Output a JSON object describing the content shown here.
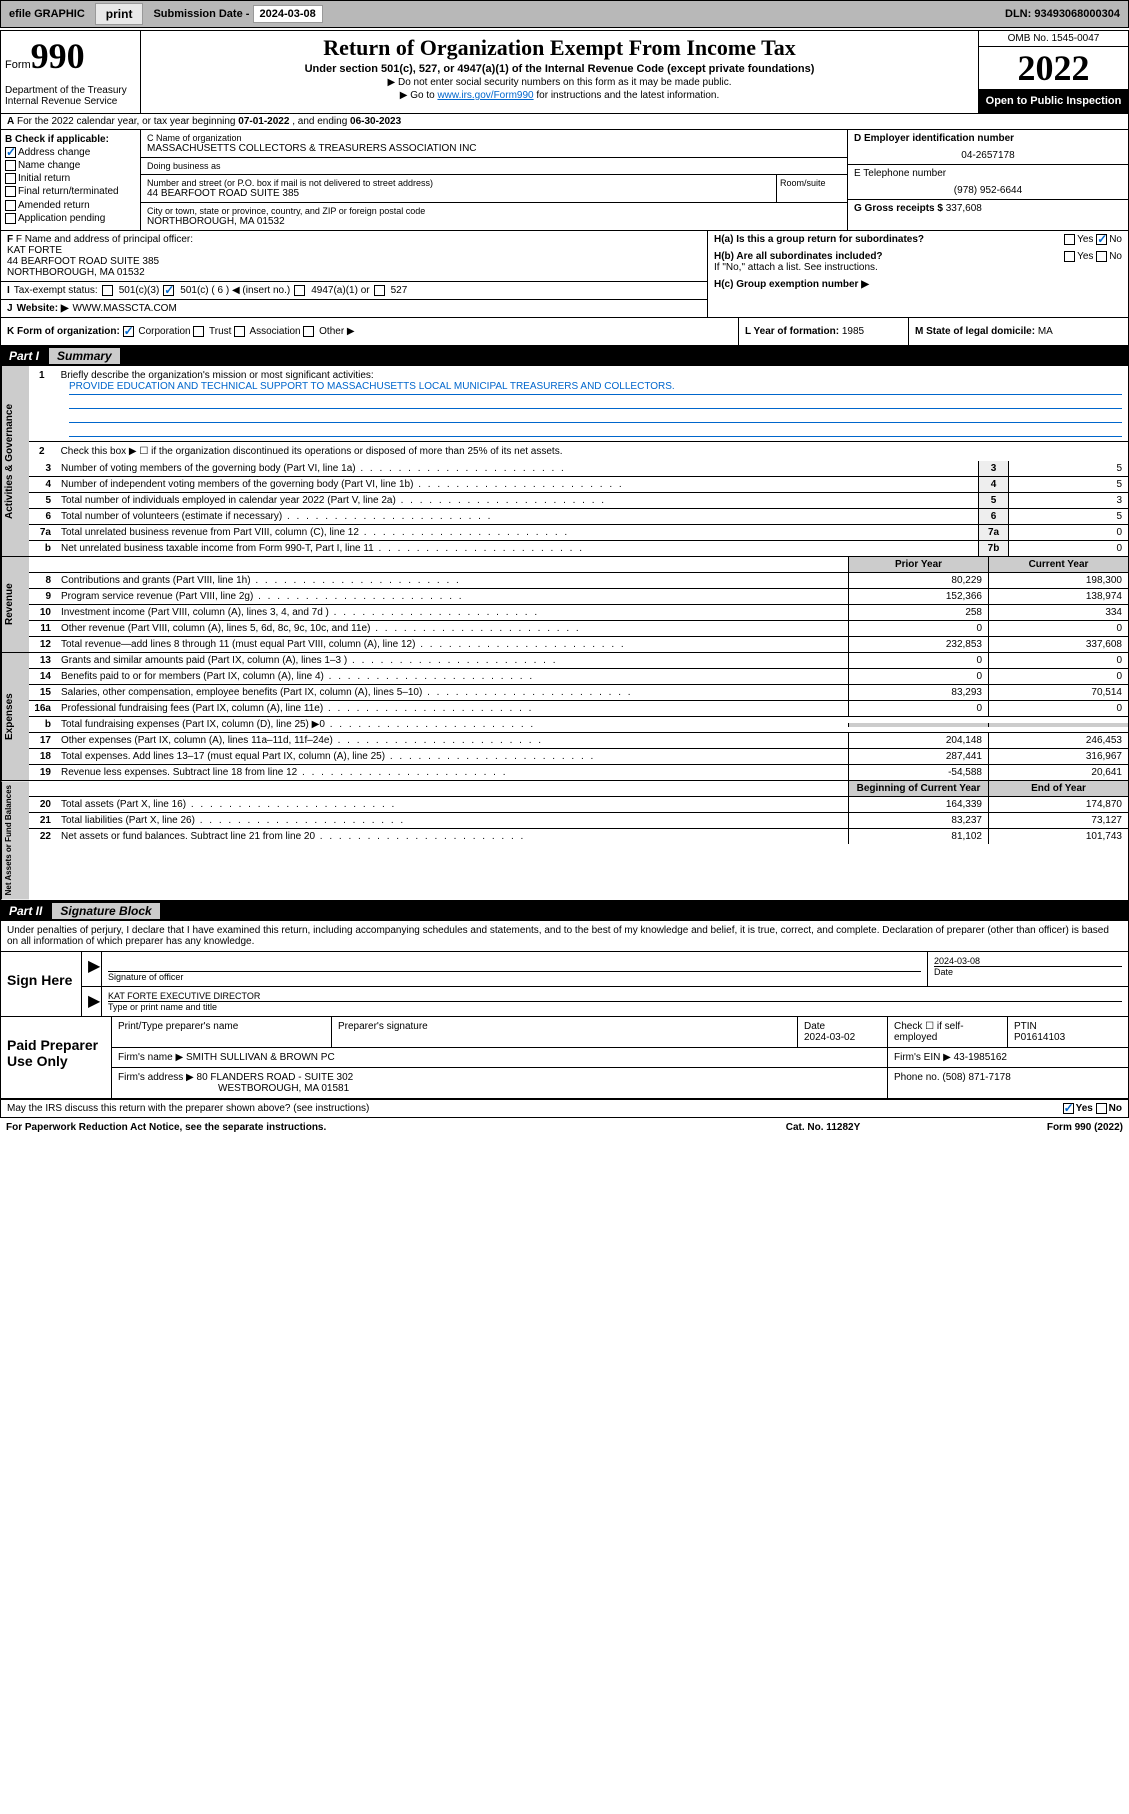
{
  "topbar": {
    "efile": "efile GRAPHIC",
    "print": "print",
    "subdate_label": "Submission Date - ",
    "subdate": "2024-03-08",
    "dln_label": "DLN: ",
    "dln": "93493068000304"
  },
  "header": {
    "form_label": "Form",
    "form_num": "990",
    "title": "Return of Organization Exempt From Income Tax",
    "subtitle": "Under section 501(c), 527, or 4947(a)(1) of the Internal Revenue Code (except private foundations)",
    "instr1": "▶ Do not enter social security numbers on this form as it may be made public.",
    "instr2_pre": "▶ Go to ",
    "instr2_link": "www.irs.gov/Form990",
    "instr2_post": " for instructions and the latest information.",
    "dept": "Department of the Treasury\nInternal Revenue Service",
    "omb": "OMB No. 1545-0047",
    "year": "2022",
    "open": "Open to Public Inspection"
  },
  "rowA": {
    "pre": "For the 2022 calendar year, or tax year beginning ",
    "begin": "07-01-2022",
    "mid": " , and ending ",
    "end": "06-30-2023"
  },
  "colB": {
    "label": "B Check if applicable:",
    "items": [
      "Address change",
      "Name change",
      "Initial return",
      "Final return/terminated",
      "Amended return",
      "Application pending"
    ],
    "checked": [
      true,
      false,
      false,
      false,
      false,
      false
    ]
  },
  "colC": {
    "name_label": "C Name of organization",
    "name": "MASSACHUSETTS COLLECTORS & TREASURERS ASSOCIATION INC",
    "dba_label": "Doing business as",
    "dba": "",
    "street_label": "Number and street (or P.O. box if mail is not delivered to street address)",
    "street": "44 BEARFOOT ROAD SUITE 385",
    "room_label": "Room/suite",
    "city_label": "City or town, state or province, country, and ZIP or foreign postal code",
    "city": "NORTHBOROUGH, MA  01532"
  },
  "colD": {
    "ein_label": "D Employer identification number",
    "ein": "04-2657178",
    "phone_label": "E Telephone number",
    "phone": "(978) 952-6644",
    "gross_label": "G Gross receipts $ ",
    "gross": "337,608"
  },
  "rowF": {
    "label": "F Name and address of principal officer:",
    "name": "KAT FORTE",
    "addr1": "44 BEARFOOT ROAD SUITE 385",
    "addr2": "NORTHBOROUGH, MA  01532"
  },
  "rowH": {
    "ha": "H(a)  Is this a group return for subordinates?",
    "hb": "H(b)  Are all subordinates included?",
    "hb_note": "If \"No,\" attach a list. See instructions.",
    "hc": "H(c)  Group exemption number ▶"
  },
  "rowI": {
    "label": "Tax-exempt status:",
    "opts": [
      "501(c)(3)",
      "501(c) ( 6 ) ◀ (insert no.)",
      "4947(a)(1) or",
      "527"
    ]
  },
  "rowJ": {
    "label": "Website: ▶",
    "value": "WWW.MASSCTA.COM"
  },
  "rowK": {
    "label": "K Form of organization:",
    "opts": [
      "Corporation",
      "Trust",
      "Association",
      "Other ▶"
    ],
    "year_label": "L Year of formation: ",
    "year": "1985",
    "state_label": "M State of legal domicile: ",
    "state": "MA"
  },
  "part1": {
    "label": "Part I",
    "title": "Summary"
  },
  "mission": {
    "num": "1",
    "label": "Briefly describe the organization's mission or most significant activities:",
    "text": "PROVIDE EDUCATION AND TECHNICAL SUPPORT TO MASSACHUSETTS LOCAL MUNICIPAL TREASURERS AND COLLECTORS."
  },
  "line2": {
    "num": "2",
    "text": "Check this box ▶ ☐  if the organization discontinued its operations or disposed of more than 25% of its net assets."
  },
  "gov_lines": [
    {
      "num": "3",
      "desc": "Number of voting members of the governing body (Part VI, line 1a)",
      "box": "3",
      "val": "5"
    },
    {
      "num": "4",
      "desc": "Number of independent voting members of the governing body (Part VI, line 1b)",
      "box": "4",
      "val": "5"
    },
    {
      "num": "5",
      "desc": "Total number of individuals employed in calendar year 2022 (Part V, line 2a)",
      "box": "5",
      "val": "3"
    },
    {
      "num": "6",
      "desc": "Total number of volunteers (estimate if necessary)",
      "box": "6",
      "val": "5"
    },
    {
      "num": "7a",
      "desc": "Total unrelated business revenue from Part VIII, column (C), line 12",
      "box": "7a",
      "val": "0"
    },
    {
      "num": "b",
      "desc": "Net unrelated business taxable income from Form 990-T, Part I, line 11",
      "box": "7b",
      "val": "0"
    }
  ],
  "py_cy_header": {
    "prior": "Prior Year",
    "current": "Current Year"
  },
  "revenue_lines": [
    {
      "num": "8",
      "desc": "Contributions and grants (Part VIII, line 1h)",
      "prior": "80,229",
      "current": "198,300"
    },
    {
      "num": "9",
      "desc": "Program service revenue (Part VIII, line 2g)",
      "prior": "152,366",
      "current": "138,974"
    },
    {
      "num": "10",
      "desc": "Investment income (Part VIII, column (A), lines 3, 4, and 7d )",
      "prior": "258",
      "current": "334"
    },
    {
      "num": "11",
      "desc": "Other revenue (Part VIII, column (A), lines 5, 6d, 8c, 9c, 10c, and 11e)",
      "prior": "0",
      "current": "0"
    },
    {
      "num": "12",
      "desc": "Total revenue—add lines 8 through 11 (must equal Part VIII, column (A), line 12)",
      "prior": "232,853",
      "current": "337,608"
    }
  ],
  "expense_lines": [
    {
      "num": "13",
      "desc": "Grants and similar amounts paid (Part IX, column (A), lines 1–3 )",
      "prior": "0",
      "current": "0"
    },
    {
      "num": "14",
      "desc": "Benefits paid to or for members (Part IX, column (A), line 4)",
      "prior": "0",
      "current": "0"
    },
    {
      "num": "15",
      "desc": "Salaries, other compensation, employee benefits (Part IX, column (A), lines 5–10)",
      "prior": "83,293",
      "current": "70,514"
    },
    {
      "num": "16a",
      "desc": "Professional fundraising fees (Part IX, column (A), line 11e)",
      "prior": "0",
      "current": "0"
    },
    {
      "num": "b",
      "desc": "Total fundraising expenses (Part IX, column (D), line 25) ▶0",
      "prior": "",
      "current": "",
      "gray": true
    },
    {
      "num": "17",
      "desc": "Other expenses (Part IX, column (A), lines 11a–11d, 11f–24e)",
      "prior": "204,148",
      "current": "246,453"
    },
    {
      "num": "18",
      "desc": "Total expenses. Add lines 13–17 (must equal Part IX, column (A), line 25)",
      "prior": "287,441",
      "current": "316,967"
    },
    {
      "num": "19",
      "desc": "Revenue less expenses. Subtract line 18 from line 12",
      "prior": "-54,588",
      "current": "20,641"
    }
  ],
  "na_header": {
    "prior": "Beginning of Current Year",
    "current": "End of Year"
  },
  "netassets_lines": [
    {
      "num": "20",
      "desc": "Total assets (Part X, line 16)",
      "prior": "164,339",
      "current": "174,870"
    },
    {
      "num": "21",
      "desc": "Total liabilities (Part X, line 26)",
      "prior": "83,237",
      "current": "73,127"
    },
    {
      "num": "22",
      "desc": "Net assets or fund balances. Subtract line 21 from line 20",
      "prior": "81,102",
      "current": "101,743"
    }
  ],
  "vlabels": {
    "gov": "Activities & Governance",
    "rev": "Revenue",
    "exp": "Expenses",
    "na": "Net Assets or Fund Balances"
  },
  "part2": {
    "label": "Part II",
    "title": "Signature Block"
  },
  "declaration": "Under penalties of perjury, I declare that I have examined this return, including accompanying schedules and statements, and to the best of my knowledge and belief, it is true, correct, and complete. Declaration of preparer (other than officer) is based on all information of which preparer has any knowledge.",
  "sign": {
    "label": "Sign Here",
    "sig_label": "Signature of officer",
    "date_label": "Date",
    "date": "2024-03-08",
    "name": "KAT FORTE  EXECUTIVE DIRECTOR",
    "name_label": "Type or print name and title"
  },
  "paid": {
    "label": "Paid Preparer Use Only",
    "h1": "Print/Type preparer's name",
    "h2": "Preparer's signature",
    "h3": "Date",
    "date": "2024-03-02",
    "h4": "Check ☐ if self-employed",
    "h5": "PTIN",
    "ptin": "P01614103",
    "firm_label": "Firm's name    ▶",
    "firm": "SMITH SULLIVAN & BROWN PC",
    "ein_label": "Firm's EIN ▶",
    "ein": "43-1985162",
    "addr_label": "Firm's address ▶",
    "addr1": "80 FLANDERS ROAD - SUITE 302",
    "addr2": "WESTBOROUGH, MA  01581",
    "phone_label": "Phone no. ",
    "phone": "(508) 871-7178"
  },
  "discuss": "May the IRS discuss this return with the preparer shown above? (see instructions)",
  "footer": {
    "left": "For Paperwork Reduction Act Notice, see the separate instructions.",
    "mid": "Cat. No. 11282Y",
    "right_pre": "Form ",
    "right_bold": "990",
    "right_post": " (2022)"
  },
  "yesno": {
    "yes": "Yes",
    "no": "No"
  }
}
